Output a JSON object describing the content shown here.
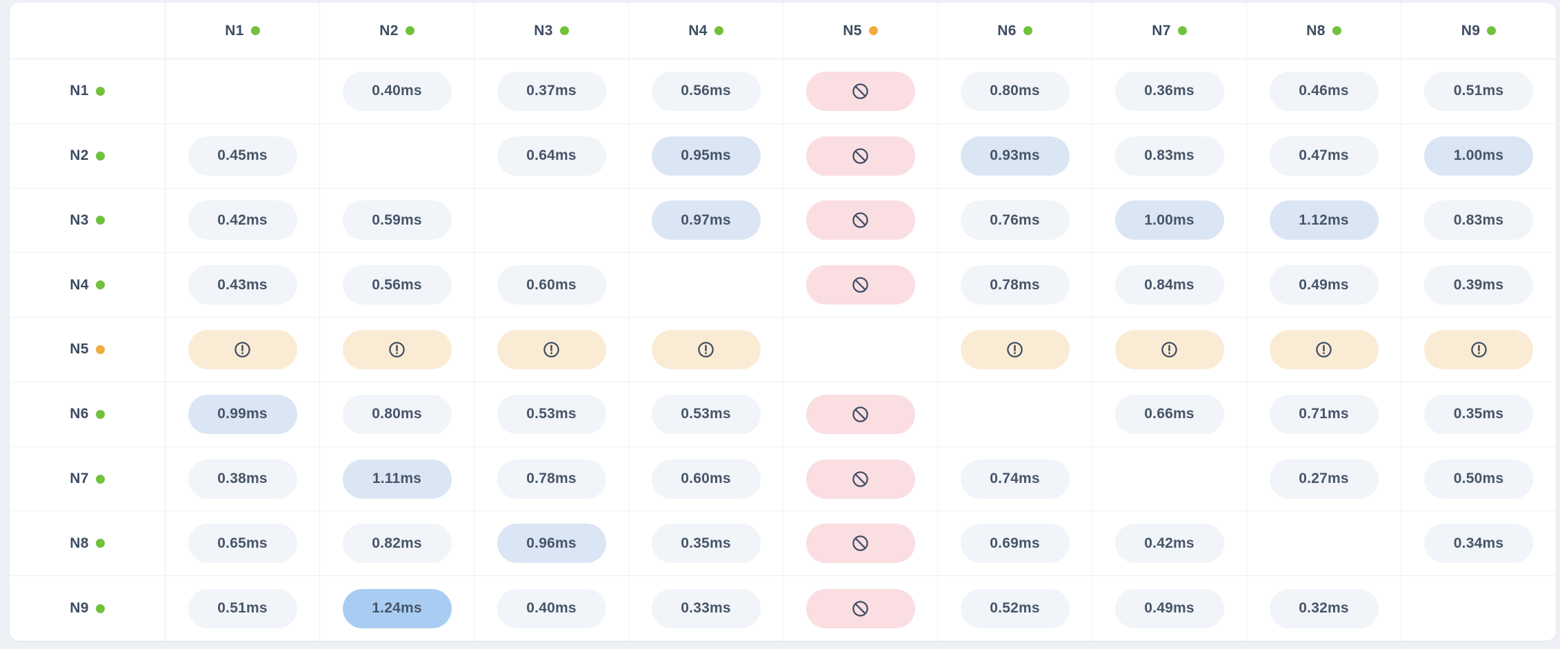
{
  "colors": {
    "page_bg": "#edf0f5",
    "card_bg": "#ffffff",
    "grid_line": "#edf1f5",
    "header_line": "#e2e7ee",
    "label_text": "#3d4b63",
    "value_text": "#475569",
    "dot_green": "#72c13c",
    "dot_orange": "#f0ab3e",
    "pill_normal": "#f1f4f8",
    "pill_blue": "#dbe6f4",
    "pill_blue_strong": "#a9cdf2",
    "pill_blocked": "#fadee1",
    "pill_warning": "#faecd4",
    "icon_stroke": "#3f4c63"
  },
  "matrix": {
    "unit": "ms",
    "col_headers": [
      {
        "label": "N1",
        "dot": "green"
      },
      {
        "label": "N2",
        "dot": "green"
      },
      {
        "label": "N3",
        "dot": "green"
      },
      {
        "label": "N4",
        "dot": "green"
      },
      {
        "label": "N5",
        "dot": "orange"
      },
      {
        "label": "N6",
        "dot": "green"
      },
      {
        "label": "N7",
        "dot": "green"
      },
      {
        "label": "N8",
        "dot": "green"
      },
      {
        "label": "N9",
        "dot": "green"
      }
    ],
    "rows": [
      {
        "label": "N1",
        "dot": "green",
        "cells": [
          {
            "type": "self"
          },
          {
            "type": "latency",
            "value": "0.40ms",
            "tone": "normal"
          },
          {
            "type": "latency",
            "value": "0.37ms",
            "tone": "normal"
          },
          {
            "type": "latency",
            "value": "0.56ms",
            "tone": "normal"
          },
          {
            "type": "blocked",
            "icon": "no-entry-icon"
          },
          {
            "type": "latency",
            "value": "0.80ms",
            "tone": "normal"
          },
          {
            "type": "latency",
            "value": "0.36ms",
            "tone": "normal"
          },
          {
            "type": "latency",
            "value": "0.46ms",
            "tone": "normal"
          },
          {
            "type": "latency",
            "value": "0.51ms",
            "tone": "normal"
          }
        ]
      },
      {
        "label": "N2",
        "dot": "green",
        "cells": [
          {
            "type": "latency",
            "value": "0.45ms",
            "tone": "normal"
          },
          {
            "type": "self"
          },
          {
            "type": "latency",
            "value": "0.64ms",
            "tone": "normal"
          },
          {
            "type": "latency",
            "value": "0.95ms",
            "tone": "blue"
          },
          {
            "type": "blocked",
            "icon": "no-entry-icon"
          },
          {
            "type": "latency",
            "value": "0.93ms",
            "tone": "blue"
          },
          {
            "type": "latency",
            "value": "0.83ms",
            "tone": "normal"
          },
          {
            "type": "latency",
            "value": "0.47ms",
            "tone": "normal"
          },
          {
            "type": "latency",
            "value": "1.00ms",
            "tone": "blue"
          }
        ]
      },
      {
        "label": "N3",
        "dot": "green",
        "cells": [
          {
            "type": "latency",
            "value": "0.42ms",
            "tone": "normal"
          },
          {
            "type": "latency",
            "value": "0.59ms",
            "tone": "normal"
          },
          {
            "type": "self"
          },
          {
            "type": "latency",
            "value": "0.97ms",
            "tone": "blue"
          },
          {
            "type": "blocked",
            "icon": "no-entry-icon"
          },
          {
            "type": "latency",
            "value": "0.76ms",
            "tone": "normal"
          },
          {
            "type": "latency",
            "value": "1.00ms",
            "tone": "blue"
          },
          {
            "type": "latency",
            "value": "1.12ms",
            "tone": "blue"
          },
          {
            "type": "latency",
            "value": "0.83ms",
            "tone": "normal"
          }
        ]
      },
      {
        "label": "N4",
        "dot": "green",
        "cells": [
          {
            "type": "latency",
            "value": "0.43ms",
            "tone": "normal"
          },
          {
            "type": "latency",
            "value": "0.56ms",
            "tone": "normal"
          },
          {
            "type": "latency",
            "value": "0.60ms",
            "tone": "normal"
          },
          {
            "type": "self"
          },
          {
            "type": "blocked",
            "icon": "no-entry-icon"
          },
          {
            "type": "latency",
            "value": "0.78ms",
            "tone": "normal"
          },
          {
            "type": "latency",
            "value": "0.84ms",
            "tone": "normal"
          },
          {
            "type": "latency",
            "value": "0.49ms",
            "tone": "normal"
          },
          {
            "type": "latency",
            "value": "0.39ms",
            "tone": "normal"
          }
        ]
      },
      {
        "label": "N5",
        "dot": "orange",
        "cells": [
          {
            "type": "warning",
            "icon": "alert-circle-icon"
          },
          {
            "type": "warning",
            "icon": "alert-circle-icon"
          },
          {
            "type": "warning",
            "icon": "alert-circle-icon"
          },
          {
            "type": "warning",
            "icon": "alert-circle-icon"
          },
          {
            "type": "self"
          },
          {
            "type": "warning",
            "icon": "alert-circle-icon"
          },
          {
            "type": "warning",
            "icon": "alert-circle-icon"
          },
          {
            "type": "warning",
            "icon": "alert-circle-icon"
          },
          {
            "type": "warning",
            "icon": "alert-circle-icon"
          }
        ]
      },
      {
        "label": "N6",
        "dot": "green",
        "cells": [
          {
            "type": "latency",
            "value": "0.99ms",
            "tone": "blue"
          },
          {
            "type": "latency",
            "value": "0.80ms",
            "tone": "normal"
          },
          {
            "type": "latency",
            "value": "0.53ms",
            "tone": "normal"
          },
          {
            "type": "latency",
            "value": "0.53ms",
            "tone": "normal"
          },
          {
            "type": "blocked",
            "icon": "no-entry-icon"
          },
          {
            "type": "self"
          },
          {
            "type": "latency",
            "value": "0.66ms",
            "tone": "normal"
          },
          {
            "type": "latency",
            "value": "0.71ms",
            "tone": "normal"
          },
          {
            "type": "latency",
            "value": "0.35ms",
            "tone": "normal"
          }
        ]
      },
      {
        "label": "N7",
        "dot": "green",
        "cells": [
          {
            "type": "latency",
            "value": "0.38ms",
            "tone": "normal"
          },
          {
            "type": "latency",
            "value": "1.11ms",
            "tone": "blue"
          },
          {
            "type": "latency",
            "value": "0.78ms",
            "tone": "normal"
          },
          {
            "type": "latency",
            "value": "0.60ms",
            "tone": "normal"
          },
          {
            "type": "blocked",
            "icon": "no-entry-icon"
          },
          {
            "type": "latency",
            "value": "0.74ms",
            "tone": "normal"
          },
          {
            "type": "self"
          },
          {
            "type": "latency",
            "value": "0.27ms",
            "tone": "normal"
          },
          {
            "type": "latency",
            "value": "0.50ms",
            "tone": "normal"
          }
        ]
      },
      {
        "label": "N8",
        "dot": "green",
        "cells": [
          {
            "type": "latency",
            "value": "0.65ms",
            "tone": "normal"
          },
          {
            "type": "latency",
            "value": "0.82ms",
            "tone": "normal"
          },
          {
            "type": "latency",
            "value": "0.96ms",
            "tone": "blue"
          },
          {
            "type": "latency",
            "value": "0.35ms",
            "tone": "normal"
          },
          {
            "type": "blocked",
            "icon": "no-entry-icon"
          },
          {
            "type": "latency",
            "value": "0.69ms",
            "tone": "normal"
          },
          {
            "type": "latency",
            "value": "0.42ms",
            "tone": "normal"
          },
          {
            "type": "self"
          },
          {
            "type": "latency",
            "value": "0.34ms",
            "tone": "normal"
          }
        ]
      },
      {
        "label": "N9",
        "dot": "green",
        "cells": [
          {
            "type": "latency",
            "value": "0.51ms",
            "tone": "normal"
          },
          {
            "type": "latency",
            "value": "1.24ms",
            "tone": "blue-strong"
          },
          {
            "type": "latency",
            "value": "0.40ms",
            "tone": "normal"
          },
          {
            "type": "latency",
            "value": "0.33ms",
            "tone": "normal"
          },
          {
            "type": "blocked",
            "icon": "no-entry-icon"
          },
          {
            "type": "latency",
            "value": "0.52ms",
            "tone": "normal"
          },
          {
            "type": "latency",
            "value": "0.49ms",
            "tone": "normal"
          },
          {
            "type": "latency",
            "value": "0.32ms",
            "tone": "normal"
          },
          {
            "type": "self"
          }
        ]
      }
    ]
  }
}
